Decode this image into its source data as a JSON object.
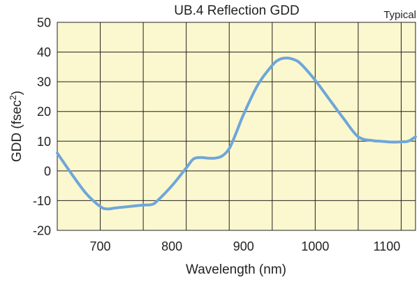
{
  "chart_data": {
    "type": "line",
    "title": "UB.4 Reflection GDD",
    "annotation": "Typical",
    "xlabel": "Wavelength (nm)",
    "ylabel": "GDD (fsec",
    "ylabel_sup": "2",
    "ylabel_close": ")",
    "xlim": [
      640,
      1140
    ],
    "ylim": [
      -20,
      50
    ],
    "x_ticks": [
      700,
      800,
      900,
      1000,
      1100
    ],
    "x_tick_labels": [
      "700",
      "800",
      "900",
      "1000",
      "1100"
    ],
    "y_ticks": [
      50,
      40,
      30,
      20,
      10,
      0,
      -10,
      -20
    ],
    "y_tick_labels": [
      "50",
      "40",
      "30",
      "20",
      "10",
      "0",
      "-10",
      "-20"
    ],
    "x_grid": [
      700,
      760,
      820,
      880,
      940,
      1000,
      1060,
      1120
    ],
    "y_grid": [
      50,
      40,
      30,
      20,
      10,
      0,
      -10,
      -20
    ],
    "grid": true,
    "colors": {
      "plot_bg": "#fbf8cf",
      "grid": "#231f20",
      "line": "#6fa6d9"
    },
    "series": [
      {
        "x": [
          640,
          660,
          680,
          700,
          710,
          720,
          740,
          760,
          772,
          780,
          800,
          820,
          830,
          840,
          850,
          860,
          870,
          880,
          890,
          900,
          920,
          940,
          950,
          960,
          970,
          980,
          1000,
          1020,
          1040,
          1060,
          1080,
          1090,
          1100,
          1110,
          1120,
          1130,
          1140
        ],
        "y": [
          6,
          -1,
          -7.5,
          -12,
          -12.8,
          -12.5,
          -12,
          -11.5,
          -11.3,
          -10,
          -5,
          1,
          4,
          4.5,
          4.3,
          4.3,
          5,
          7.5,
          13,
          19,
          29,
          35.5,
          37.5,
          38,
          37.5,
          36,
          30.5,
          24,
          17.5,
          11.5,
          10.2,
          10,
          9.8,
          9.7,
          9.8,
          10,
          11.5
        ]
      }
    ]
  }
}
